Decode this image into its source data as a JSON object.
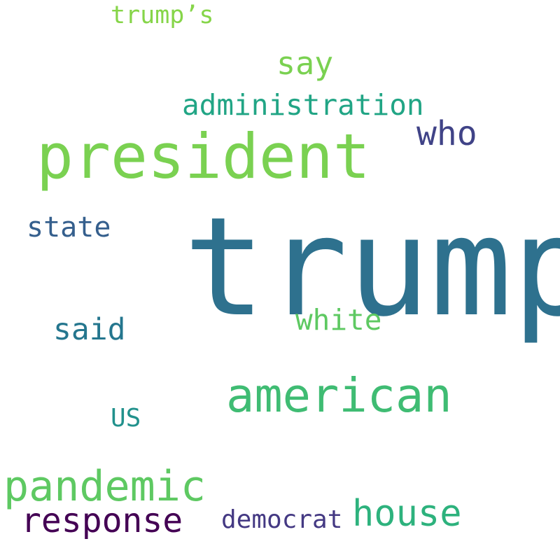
{
  "words": [
    {
      "id": "trump",
      "text": "trump",
      "color": "#2e718e"
    },
    {
      "id": "president",
      "text": "president",
      "color": "#7ad151"
    },
    {
      "id": "american",
      "text": "american",
      "color": "#3fbc73"
    },
    {
      "id": "pandemic",
      "text": "pandemic",
      "color": "#5ec962"
    },
    {
      "id": "house",
      "text": "house",
      "color": "#2db27d"
    },
    {
      "id": "response",
      "text": "response",
      "color": "#440154"
    },
    {
      "id": "who",
      "text": "who",
      "color": "#404387"
    },
    {
      "id": "administration",
      "text": "administration",
      "color": "#21a585"
    },
    {
      "id": "say",
      "text": "say",
      "color": "#7ad151"
    },
    {
      "id": "white",
      "text": "white",
      "color": "#5ec962"
    },
    {
      "id": "said",
      "text": "said",
      "color": "#24768e"
    },
    {
      "id": "state",
      "text": "state",
      "color": "#355f8d"
    },
    {
      "id": "trumps",
      "text": "trump’s",
      "color": "#86d549"
    },
    {
      "id": "democrat",
      "text": "democrat",
      "color": "#443983"
    },
    {
      "id": "us",
      "text": "US",
      "color": "#21918c"
    }
  ]
}
